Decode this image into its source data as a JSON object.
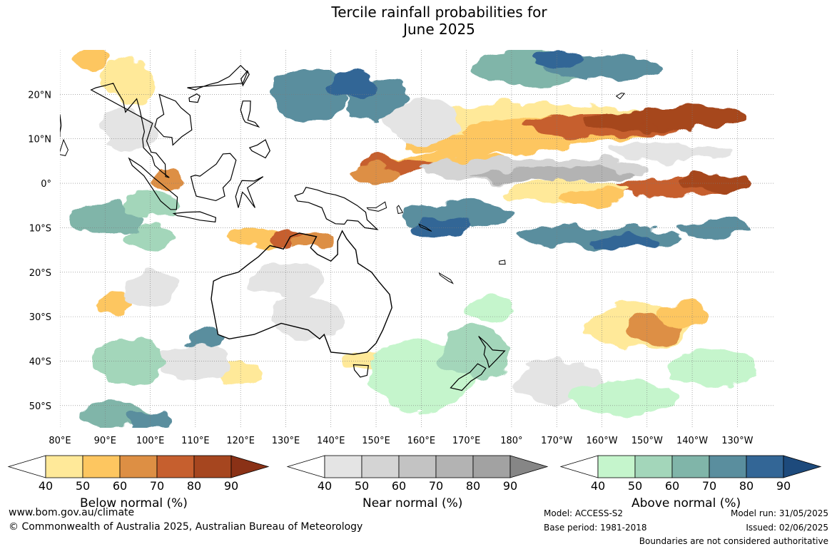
{
  "title_line1": "Tercile rainfall probabilities for",
  "title_line2": "June 2025",
  "map": {
    "lon_labels": [
      "80°E",
      "90°E",
      "100°E",
      "110°E",
      "120°E",
      "130°E",
      "140°E",
      "150°E",
      "160°E",
      "170°E",
      "180°",
      "170°W",
      "160°W",
      "150°W",
      "140°W",
      "130°W"
    ],
    "lat_labels": [
      "20°N",
      "10°N",
      "0°",
      "10°S",
      "20°S",
      "30°S",
      "40°S",
      "50°S"
    ],
    "colors": {
      "land_outline": "#000000",
      "grid": "#7a7a7a",
      "border": "#888888"
    }
  },
  "colorbars": [
    {
      "id": "below",
      "label": "Below normal (%)",
      "ticks": [
        "40",
        "50",
        "60",
        "70",
        "80",
        "90"
      ],
      "colors": [
        "#ffe999",
        "#fdc660",
        "#dd8f44",
        "#c65f2e",
        "#a6461f",
        "#8a3116"
      ]
    },
    {
      "id": "near",
      "label": "Near normal (%)",
      "ticks": [
        "40",
        "50",
        "60",
        "70",
        "80",
        "90"
      ],
      "colors": [
        "#e4e4e4",
        "#d4d4d4",
        "#c3c3c3",
        "#b3b3b3",
        "#a2a2a2",
        "#868686"
      ]
    },
    {
      "id": "above",
      "label": "Above normal (%)",
      "ticks": [
        "40",
        "50",
        "60",
        "70",
        "80",
        "90"
      ],
      "colors": [
        "#c5f5cc",
        "#a3d6ba",
        "#80b5a9",
        "#5a8e9e",
        "#336696",
        "#1d4a7c"
      ]
    }
  ],
  "footer": {
    "website": "www.bom.gov.au/climate",
    "copyright": "© Commonwealth of Australia 2025, Australian Bureau of Meteorology",
    "model": "Model: ACCESS-S2",
    "base_period": "Base period: 1981-2018",
    "model_run": "Model run: 31/05/2025",
    "issued": "Issued: 02/06/2025",
    "disclaimer": "Boundaries are not considered authoritative"
  }
}
